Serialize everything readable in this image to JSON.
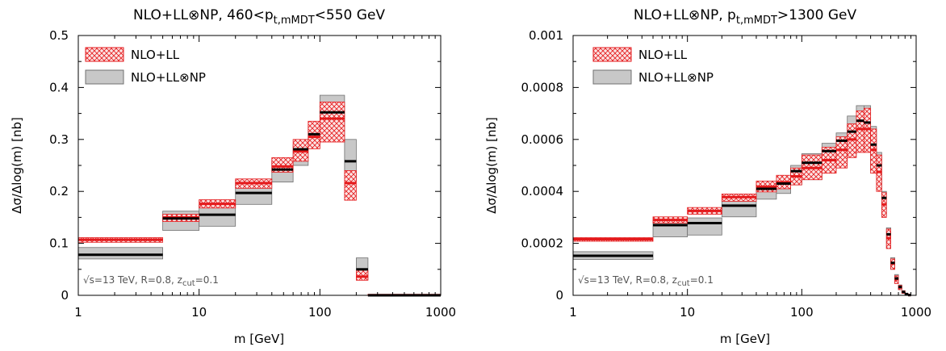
{
  "colors": {
    "ll": "#e41a1c",
    "np_fill": "#c8c8c8",
    "np_edge": "#707070",
    "np_central": "#000000"
  },
  "chart_data": [
    {
      "type": "histogram-band",
      "title_pre": "NLO+LL⊗NP, 460<p",
      "title_sub": "t,mMDT",
      "title_post": "<550 GeV",
      "xlabel": "m [GeV]",
      "ylabel": "Δσ/Δlog(m) [nb]",
      "xscale": "log",
      "xlim": [
        1,
        1000
      ],
      "ylim": [
        0,
        0.5
      ],
      "xticks": [
        {
          "v": 1,
          "label": "1"
        },
        {
          "v": 10,
          "label": "10"
        },
        {
          "v": 100,
          "label": "100"
        },
        {
          "v": 1000,
          "label": "1000"
        }
      ],
      "yticks": [
        {
          "v": 0,
          "label": "0"
        },
        {
          "v": 0.1,
          "label": "0.1"
        },
        {
          "v": 0.2,
          "label": "0.2"
        },
        {
          "v": 0.3,
          "label": "0.3"
        },
        {
          "v": 0.4,
          "label": "0.4"
        },
        {
          "v": 0.5,
          "label": "0.5"
        }
      ],
      "legend": [
        "NLO+LL",
        "NLO+LL⊗NP"
      ],
      "annotation_pre": "√s=13 TeV, R=0.8, z",
      "annotation_sub": "cut",
      "annotation_post": "=0.1",
      "series": [
        {
          "name": "NLO+LL",
          "bins": [
            [
              1,
              5,
              0.102,
              0.107,
              0.111
            ],
            [
              5,
              10,
              0.142,
              0.15,
              0.156
            ],
            [
              10,
              20,
              0.168,
              0.176,
              0.184
            ],
            [
              20,
              40,
              0.206,
              0.216,
              0.224
            ],
            [
              40,
              60,
              0.237,
              0.248,
              0.265
            ],
            [
              60,
              80,
              0.258,
              0.277,
              0.3
            ],
            [
              80,
              100,
              0.282,
              0.305,
              0.335
            ],
            [
              100,
              160,
              0.295,
              0.34,
              0.372
            ],
            [
              160,
              200,
              0.183,
              0.216,
              0.24
            ],
            [
              200,
              250,
              0.029,
              0.036,
              0.048
            ],
            [
              250,
              1000,
              0.0,
              0.0,
              0.002
            ]
          ]
        },
        {
          "name": "NLO+LL⊗NP",
          "bins": [
            [
              1,
              5,
              0.07,
              0.078,
              0.092
            ],
            [
              5,
              10,
              0.125,
              0.148,
              0.162
            ],
            [
              10,
              20,
              0.133,
              0.155,
              0.174
            ],
            [
              20,
              40,
              0.175,
              0.197,
              0.217
            ],
            [
              40,
              60,
              0.218,
              0.242,
              0.258
            ],
            [
              60,
              80,
              0.25,
              0.281,
              0.29
            ],
            [
              80,
              100,
              0.288,
              0.31,
              0.325
            ],
            [
              100,
              160,
              0.297,
              0.352,
              0.385
            ],
            [
              160,
              200,
              0.22,
              0.258,
              0.3
            ],
            [
              200,
              250,
              0.03,
              0.05,
              0.072
            ],
            [
              250,
              1000,
              0.0,
              0.0,
              0.002
            ]
          ]
        }
      ]
    },
    {
      "type": "histogram-band",
      "title_pre": "NLO+LL⊗NP, p",
      "title_sub": "t,mMDT",
      "title_post": ">1300 GeV",
      "xlabel": "m [GeV]",
      "ylabel": "Δσ/Δlog(m) [nb]",
      "xscale": "log",
      "xlim": [
        1,
        1000
      ],
      "ylim": [
        0,
        0.001
      ],
      "xticks": [
        {
          "v": 1,
          "label": "1"
        },
        {
          "v": 10,
          "label": "10"
        },
        {
          "v": 100,
          "label": "100"
        },
        {
          "v": 1000,
          "label": "1000"
        }
      ],
      "yticks": [
        {
          "v": 0,
          "label": "0"
        },
        {
          "v": 0.0002,
          "label": "0.0002"
        },
        {
          "v": 0.0004,
          "label": "0.0004"
        },
        {
          "v": 0.0006,
          "label": "0.0006"
        },
        {
          "v": 0.0008,
          "label": "0.0008"
        },
        {
          "v": 0.001,
          "label": "0.001"
        }
      ],
      "legend": [
        "NLO+LL",
        "NLO+LL⊗NP"
      ],
      "annotation_pre": "√s=13 TeV, R=0.8, z",
      "annotation_sub": "cut",
      "annotation_post": "=0.1",
      "series": [
        {
          "name": "NLO+LL",
          "bins": [
            [
              1,
              5,
              0.000208,
              0.000216,
              0.000222
            ],
            [
              5,
              10,
              0.000278,
              0.00029,
              0.000302
            ],
            [
              10,
              20,
              0.000312,
              0.000325,
              0.000338
            ],
            [
              20,
              40,
              0.000362,
              0.000378,
              0.00039
            ],
            [
              40,
              60,
              0.000398,
              0.000418,
              0.00044
            ],
            [
              60,
              80,
              0.00041,
              0.000435,
              0.000462
            ],
            [
              80,
              100,
              0.000425,
              0.000458,
              0.00049
            ],
            [
              100,
              150,
              0.000445,
              0.00049,
              0.00054
            ],
            [
              150,
              200,
              0.00047,
              0.00052,
              0.00057
            ],
            [
              200,
              250,
              0.00049,
              0.00056,
              0.00061
            ],
            [
              250,
              300,
              0.00053,
              0.0006,
              0.00066
            ],
            [
              300,
              350,
              0.00055,
              0.00064,
              0.00071
            ],
            [
              350,
              400,
              0.00055,
              0.00064,
              0.00072
            ],
            [
              400,
              450,
              0.00047,
              0.00056,
              0.00064
            ],
            [
              450,
              500,
              0.0004,
              0.000475,
              0.00054
            ],
            [
              500,
              550,
              0.0003,
              0.00035,
              0.000395
            ],
            [
              550,
              600,
              0.00018,
              0.00022,
              0.000255
            ],
            [
              600,
              650,
              0.0001,
              0.000122,
              0.00014
            ],
            [
              650,
              700,
              4.5e-05,
              6.2e-05,
              7.5e-05
            ],
            [
              700,
              750,
              2.2e-05,
              3e-05,
              3.8e-05
            ],
            [
              750,
              800,
              8e-06,
              1.2e-05,
              1.7e-05
            ],
            [
              800,
              850,
              2e-06,
              4e-06,
              7e-06
            ],
            [
              850,
              900,
              0.0,
              1e-06,
              2e-06
            ]
          ]
        },
        {
          "name": "NLO+LL⊗NP",
          "bins": [
            [
              1,
              5,
              0.000138,
              0.000152,
              0.000168
            ],
            [
              5,
              10,
              0.000225,
              0.00027,
              0.000288
            ],
            [
              10,
              20,
              0.000232,
              0.000278,
              0.000298
            ],
            [
              20,
              40,
              0.000302,
              0.000345,
              0.000365
            ],
            [
              40,
              60,
              0.00037,
              0.00041,
              0.000428
            ],
            [
              60,
              80,
              0.000392,
              0.00043,
              0.00045
            ],
            [
              80,
              100,
              0.000425,
              0.000478,
              0.0005
            ],
            [
              100,
              150,
              0.000445,
              0.00051,
              0.000545
            ],
            [
              150,
              200,
              0.00048,
              0.000555,
              0.000585
            ],
            [
              200,
              250,
              0.00051,
              0.000595,
              0.000625
            ],
            [
              250,
              300,
              0.00054,
              0.00063,
              0.00069
            ],
            [
              300,
              350,
              0.00059,
              0.000672,
              0.00073
            ],
            [
              350,
              400,
              0.00057,
              0.000665,
              0.00073
            ],
            [
              400,
              450,
              0.00048,
              0.00058,
              0.00065
            ],
            [
              450,
              500,
              0.00041,
              0.0005,
              0.00055
            ],
            [
              500,
              550,
              0.000305,
              0.000375,
              0.0004
            ],
            [
              550,
              600,
              0.00018,
              0.000235,
              0.00026
            ],
            [
              600,
              650,
              0.0001,
              0.000125,
              0.000145
            ],
            [
              650,
              700,
              5e-05,
              6.5e-05,
              8e-05
            ],
            [
              700,
              750,
              2.2e-05,
              3.2e-05,
              4e-05
            ],
            [
              750,
              800,
              8e-06,
              1.3e-05,
              1.8e-05
            ],
            [
              800,
              850,
              2e-06,
              5e-06,
              8e-06
            ],
            [
              850,
              900,
              0.0,
              1e-06,
              2e-06
            ]
          ]
        }
      ]
    }
  ]
}
